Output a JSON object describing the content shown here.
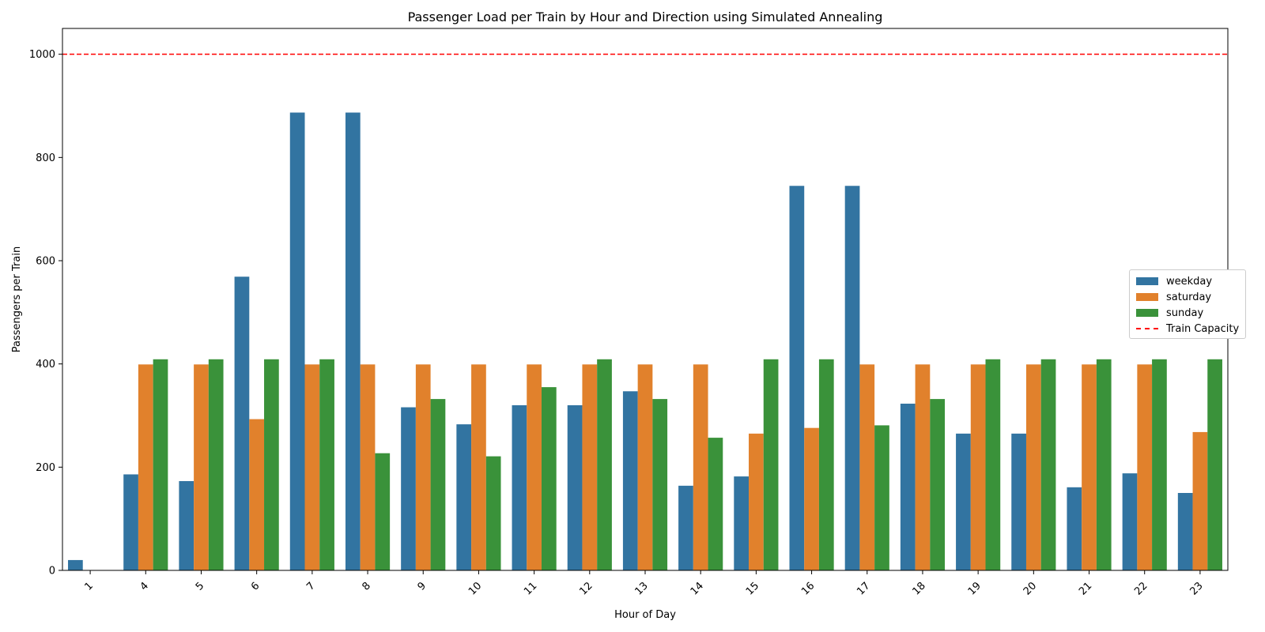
{
  "chart_data": {
    "type": "bar",
    "title": "Passenger Load per Train by Hour and Direction using Simulated Annealing",
    "xlabel": "Hour of Day",
    "ylabel": "Passengers per Train",
    "ylim": [
      0,
      1050
    ],
    "yticks": [
      0,
      200,
      400,
      600,
      800,
      1000
    ],
    "categories": [
      "1",
      "4",
      "5",
      "6",
      "7",
      "8",
      "9",
      "10",
      "11",
      "12",
      "13",
      "14",
      "15",
      "16",
      "17",
      "18",
      "19",
      "20",
      "21",
      "22",
      "23"
    ],
    "series": [
      {
        "name": "weekday",
        "color": "#3274a1",
        "values": [
          20,
          186,
          173,
          569,
          887,
          887,
          316,
          283,
          320,
          320,
          347,
          164,
          182,
          745,
          745,
          323,
          265,
          265,
          161,
          188,
          150
        ]
      },
      {
        "name": "saturday",
        "color": "#e1812c",
        "values": [
          0,
          399,
          399,
          293,
          399,
          399,
          399,
          399,
          399,
          399,
          399,
          399,
          265,
          276,
          399,
          399,
          399,
          399,
          399,
          399,
          268
        ]
      },
      {
        "name": "sunday",
        "color": "#3a923a",
        "values": [
          0,
          409,
          409,
          409,
          409,
          227,
          332,
          221,
          355,
          409,
          332,
          257,
          409,
          409,
          281,
          332,
          409,
          409,
          409,
          409,
          409
        ]
      }
    ],
    "reference_line": {
      "label": "Train Capacity",
      "value": 1000,
      "color": "#ff0000"
    },
    "legend_position": "center-right"
  }
}
